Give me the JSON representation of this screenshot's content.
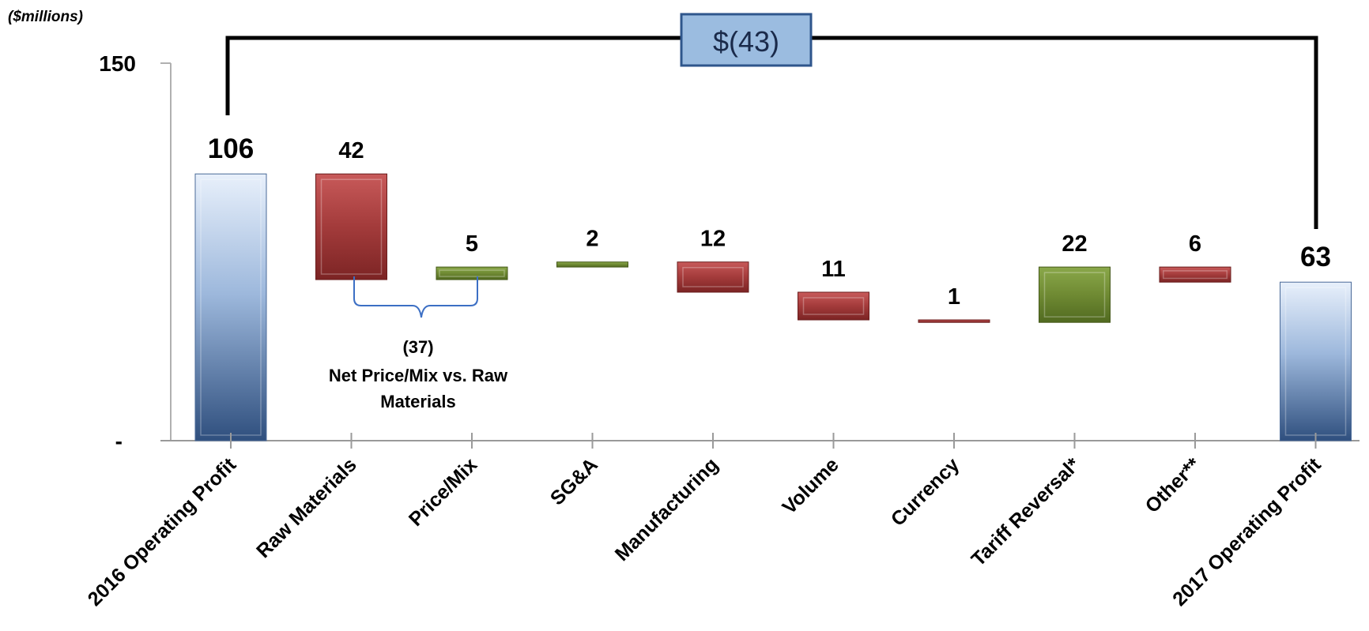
{
  "chart_data": {
    "type": "waterfall",
    "units_label": "($millions)",
    "y_ticks": [
      {
        "value": 150,
        "label": "150"
      },
      {
        "value": 0,
        "label": "-"
      }
    ],
    "ylim": [
      0,
      150
    ],
    "categories": [
      {
        "label": "2016 Operating Profit",
        "value": 106,
        "display": "106",
        "kind": "total",
        "base": 0
      },
      {
        "label": "Raw Materials",
        "value": 42,
        "display": "42",
        "kind": "decrease",
        "base": 64
      },
      {
        "label": "Price/Mix",
        "value": 5,
        "display": "5",
        "kind": "increase",
        "base": 64
      },
      {
        "label": "SG&A",
        "value": 2,
        "display": "2",
        "kind": "increase",
        "base": 69
      },
      {
        "label": "Manufacturing",
        "value": 12,
        "display": "12",
        "kind": "decrease",
        "base": 59
      },
      {
        "label": "Volume",
        "value": 11,
        "display": "11",
        "kind": "decrease",
        "base": 48
      },
      {
        "label": "Currency",
        "value": 1,
        "display": "1",
        "kind": "decrease",
        "base": 47
      },
      {
        "label": "Tariff Reversal*",
        "value": 22,
        "display": "22",
        "kind": "increase",
        "base": 47
      },
      {
        "label": "Other**",
        "value": 6,
        "display": "6",
        "kind": "decrease",
        "base": 63
      },
      {
        "label": "2017 Operating Profit",
        "value": 63,
        "display": "63",
        "kind": "total",
        "base": 0
      }
    ],
    "total_change": {
      "label": "$(43)"
    },
    "bracket": {
      "value_label": "(37)",
      "line1": "Net Price/Mix vs. Raw",
      "line2": "Materials"
    },
    "colors": {
      "decrease": "#a33b3b",
      "increase": "#6f8a33",
      "total_light": "#dce8f8",
      "total_dark": "#3d5f8f",
      "callout_fill": "#9bbce0",
      "callout_border": "#2f568c",
      "bracket": "#3c6fc4"
    },
    "grid": false
  }
}
